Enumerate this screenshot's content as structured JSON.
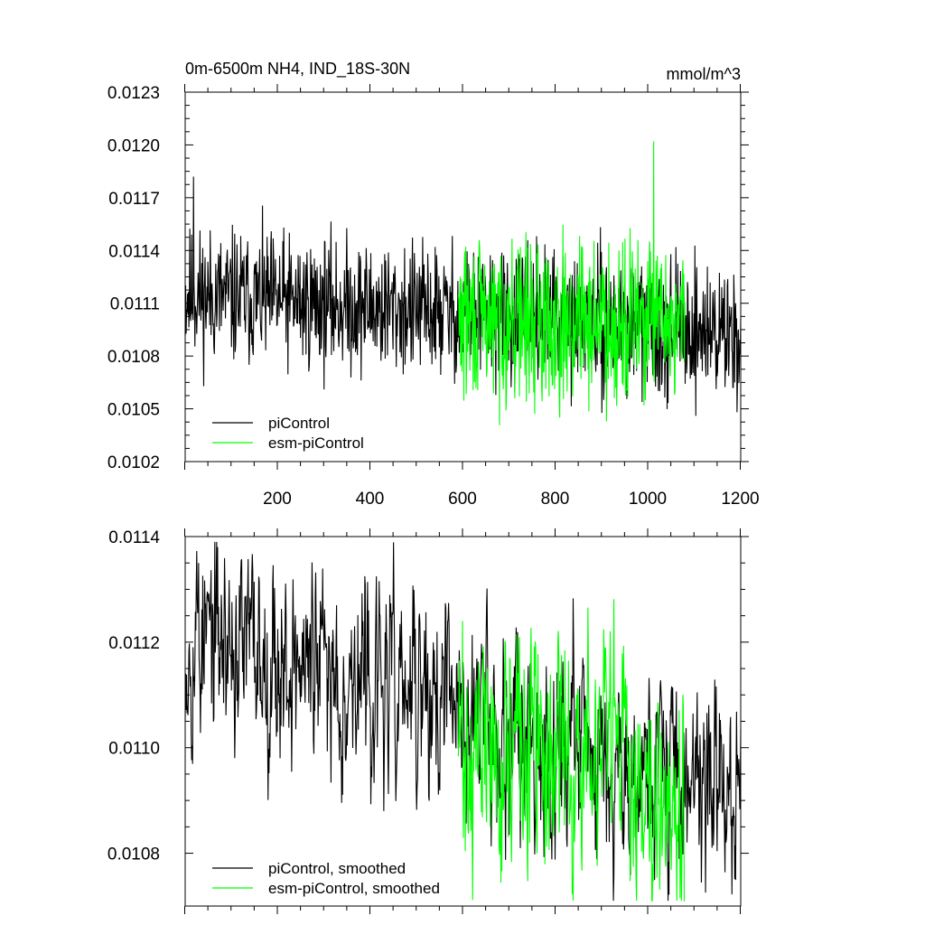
{
  "chart_data": [
    {
      "type": "line",
      "title_left": "0m-6500m NH4, IND_18S-30N",
      "title_right": "mmol/m^3",
      "xlabel": "",
      "ylabel": "",
      "xlim": [
        1,
        1201
      ],
      "ylim": [
        0.0102,
        0.0123
      ],
      "yticks": [
        "0.0102",
        "0.0105",
        "0.0108",
        "0.0111",
        "0.0114",
        "0.0117",
        "0.0120",
        "0.0123"
      ],
      "xticks": [
        "200",
        "400",
        "600",
        "800",
        "1000",
        "1200"
      ],
      "grid": false,
      "legend": "bottom-left",
      "series": [
        {
          "name": "piControl",
          "color": "#000000",
          "x_start": 1,
          "x_end": 1201,
          "mean_start": 0.01115,
          "mean_end": 0.01093,
          "spread": 0.00025,
          "spike": [
            19,
            0.01182
          ],
          "seed": 11
        },
        {
          "name": "esm-piControl",
          "color": "#00ff00",
          "x_start": 591,
          "x_end": 1080,
          "mean_start": 0.011,
          "mean_end": 0.011,
          "spread": 0.0003,
          "spike": [
            1013,
            0.01202
          ],
          "seed": 29
        }
      ]
    },
    {
      "type": "line",
      "title_left": "",
      "title_right": "",
      "xlabel": "",
      "ylabel": "",
      "xlim": [
        1,
        1201
      ],
      "ylim": [
        0.0107,
        0.0114
      ],
      "yticks": [
        "0.0108",
        "0.0110",
        "0.0112",
        "0.0114"
      ],
      "xticks": [],
      "grid": false,
      "legend": "bottom-left",
      "series": [
        {
          "name": "piControl, smoothed",
          "color": "#000000",
          "x_start": 1,
          "x_end": 1201,
          "mean_start": 0.01122,
          "mean_end": 0.01092,
          "spread": 0.0002,
          "spike": [
            30,
            0.01135
          ],
          "seed": 53
        },
        {
          "name": "esm-piControl, smoothed",
          "color": "#00ff00",
          "x_start": 591,
          "x_end": 1080,
          "mean_start": 0.011,
          "mean_end": 0.01095,
          "spread": 0.00024,
          "spike": [
            600,
            0.01124
          ],
          "seed": 71
        }
      ]
    }
  ]
}
